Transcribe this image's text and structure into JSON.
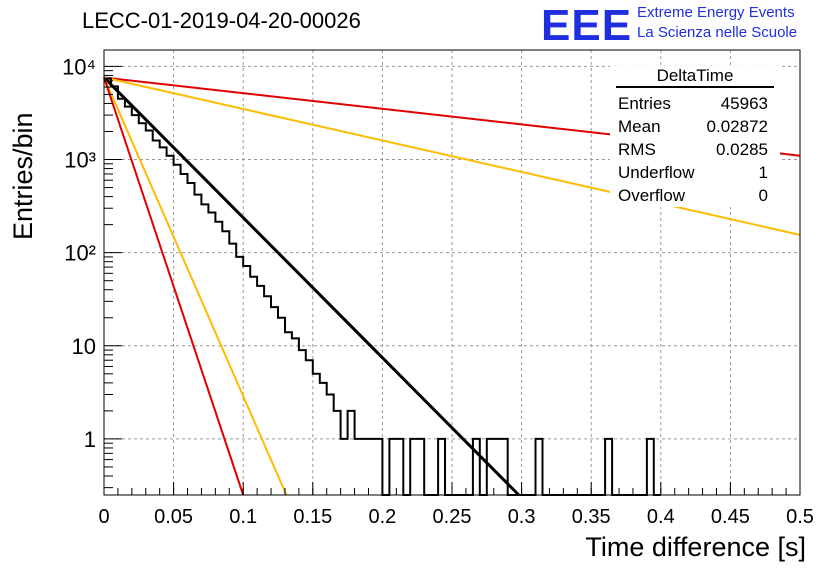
{
  "title": "LECC-01-2019-04-20-00026",
  "logo": {
    "mark": "EEE",
    "line1": "Extreme Energy Events",
    "line2": "La Scienza nelle Scuole",
    "color": "#1f2fe0"
  },
  "stats": {
    "name": "DeltaTime",
    "rows": [
      {
        "label": "Entries",
        "value": "45963"
      },
      {
        "label": "Mean",
        "value": "0.02872"
      },
      {
        "label": "RMS",
        "value": "0.0285"
      },
      {
        "label": "Underflow",
        "value": "1"
      },
      {
        "label": "Overflow",
        "value": "0"
      }
    ]
  },
  "chart_data": {
    "type": "line",
    "title": "LECC-01-2019-04-20-00026",
    "xlabel": "Time difference [s]",
    "ylabel": "Entries/bin",
    "xlim": [
      0,
      0.5
    ],
    "ylim": [
      0.25,
      15000
    ],
    "yscale": "log",
    "grid": true,
    "legend": "top-right",
    "x_ticks": [
      "0",
      "0.05",
      "0.1",
      "0.15",
      "0.2",
      "0.25",
      "0.3",
      "0.35",
      "0.4",
      "0.45",
      "0.5"
    ],
    "y_ticks": [
      {
        "value": 1,
        "label": "1"
      },
      {
        "value": 10,
        "label": "10"
      },
      {
        "value": 100,
        "label": "10²"
      },
      {
        "value": 1000,
        "label": "10³"
      },
      {
        "value": 10000,
        "label": "10⁴"
      }
    ],
    "fit_lines": [
      {
        "color": "#000000",
        "x": [
          0,
          0.298
        ],
        "y": [
          7600,
          0.25
        ]
      },
      {
        "color": "#e00000",
        "x": [
          0,
          0.5
        ],
        "y": [
          7600,
          1100
        ]
      },
      {
        "color": "#ffbb00",
        "x": [
          0,
          0.5
        ],
        "y": [
          7600,
          155
        ]
      },
      {
        "color": "#ffbb00",
        "x": [
          0,
          0.131
        ],
        "y": [
          7600,
          0.25
        ]
      },
      {
        "color": "#e00000",
        "x": [
          0,
          0.1
        ],
        "y": [
          7600,
          0.25
        ]
      }
    ],
    "histogram": {
      "color": "#000000",
      "bin_width": 0.005,
      "bins": [
        {
          "x": 0.0,
          "y": 7400
        },
        {
          "x": 0.005,
          "y": 6100
        },
        {
          "x": 0.01,
          "y": 4500
        },
        {
          "x": 0.015,
          "y": 3700
        },
        {
          "x": 0.02,
          "y": 3000
        },
        {
          "x": 0.025,
          "y": 2450
        },
        {
          "x": 0.03,
          "y": 2050
        },
        {
          "x": 0.035,
          "y": 1600
        },
        {
          "x": 0.04,
          "y": 1350
        },
        {
          "x": 0.045,
          "y": 1100
        },
        {
          "x": 0.05,
          "y": 880
        },
        {
          "x": 0.055,
          "y": 700
        },
        {
          "x": 0.06,
          "y": 560
        },
        {
          "x": 0.065,
          "y": 420
        },
        {
          "x": 0.07,
          "y": 330
        },
        {
          "x": 0.075,
          "y": 270
        },
        {
          "x": 0.08,
          "y": 215
        },
        {
          "x": 0.085,
          "y": 170
        },
        {
          "x": 0.09,
          "y": 125
        },
        {
          "x": 0.095,
          "y": 90
        },
        {
          "x": 0.1,
          "y": 72
        },
        {
          "x": 0.105,
          "y": 55
        },
        {
          "x": 0.11,
          "y": 44
        },
        {
          "x": 0.115,
          "y": 34
        },
        {
          "x": 0.12,
          "y": 26
        },
        {
          "x": 0.125,
          "y": 20
        },
        {
          "x": 0.13,
          "y": 14
        },
        {
          "x": 0.135,
          "y": 12
        },
        {
          "x": 0.14,
          "y": 9
        },
        {
          "x": 0.145,
          "y": 7
        },
        {
          "x": 0.15,
          "y": 5
        },
        {
          "x": 0.155,
          "y": 4
        },
        {
          "x": 0.16,
          "y": 3
        },
        {
          "x": 0.165,
          "y": 2
        },
        {
          "x": 0.17,
          "y": 1
        },
        {
          "x": 0.175,
          "y": 2
        },
        {
          "x": 0.18,
          "y": 1
        },
        {
          "x": 0.185,
          "y": 1
        },
        {
          "x": 0.19,
          "y": 1
        },
        {
          "x": 0.195,
          "y": 1
        },
        {
          "x": 0.2,
          "y": 0
        },
        {
          "x": 0.205,
          "y": 1
        },
        {
          "x": 0.21,
          "y": 1
        },
        {
          "x": 0.215,
          "y": 0
        },
        {
          "x": 0.22,
          "y": 1
        },
        {
          "x": 0.225,
          "y": 1
        },
        {
          "x": 0.23,
          "y": 0
        },
        {
          "x": 0.235,
          "y": 0
        },
        {
          "x": 0.24,
          "y": 1
        },
        {
          "x": 0.245,
          "y": 0
        },
        {
          "x": 0.25,
          "y": 0
        },
        {
          "x": 0.255,
          "y": 0
        },
        {
          "x": 0.26,
          "y": 0
        },
        {
          "x": 0.265,
          "y": 1
        },
        {
          "x": 0.27,
          "y": 0
        },
        {
          "x": 0.275,
          "y": 1
        },
        {
          "x": 0.28,
          "y": 1
        },
        {
          "x": 0.285,
          "y": 1
        },
        {
          "x": 0.29,
          "y": 0
        },
        {
          "x": 0.295,
          "y": 0
        },
        {
          "x": 0.3,
          "y": 0
        },
        {
          "x": 0.305,
          "y": 0
        },
        {
          "x": 0.31,
          "y": 1
        },
        {
          "x": 0.315,
          "y": 0
        },
        {
          "x": 0.32,
          "y": 0
        },
        {
          "x": 0.325,
          "y": 0
        },
        {
          "x": 0.33,
          "y": 0
        },
        {
          "x": 0.335,
          "y": 0
        },
        {
          "x": 0.34,
          "y": 0
        },
        {
          "x": 0.345,
          "y": 0
        },
        {
          "x": 0.35,
          "y": 0
        },
        {
          "x": 0.355,
          "y": 0
        },
        {
          "x": 0.36,
          "y": 1
        },
        {
          "x": 0.365,
          "y": 0
        },
        {
          "x": 0.37,
          "y": 0
        },
        {
          "x": 0.375,
          "y": 0
        },
        {
          "x": 0.38,
          "y": 0
        },
        {
          "x": 0.385,
          "y": 0
        },
        {
          "x": 0.39,
          "y": 1
        },
        {
          "x": 0.395,
          "y": 0
        }
      ]
    }
  }
}
